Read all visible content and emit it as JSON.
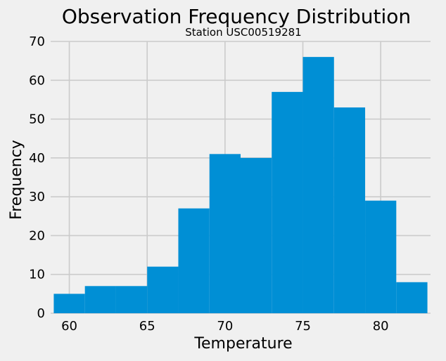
{
  "chart_data": {
    "type": "bar",
    "title": "Observation Frequency Distribution",
    "subtitle": "Station USC00519281",
    "xlabel": "Temperature",
    "ylabel": "Frequency",
    "xlim": [
      58.8,
      83.2
    ],
    "ylim": [
      0,
      70
    ],
    "bin_edges": [
      59,
      61,
      63,
      65,
      67,
      69,
      71,
      73,
      75,
      77,
      79,
      81,
      83
    ],
    "values": [
      5,
      7,
      7,
      12,
      27,
      41,
      40,
      57,
      66,
      53,
      29,
      8
    ],
    "x_ticks": [
      60,
      65,
      70,
      75,
      80
    ],
    "y_ticks": [
      0,
      10,
      20,
      30,
      40,
      50,
      60,
      70
    ],
    "grid": true,
    "bar_color": "#008fd5",
    "background_color": "#f0f0f0",
    "grid_color": "#cbcbcb"
  }
}
